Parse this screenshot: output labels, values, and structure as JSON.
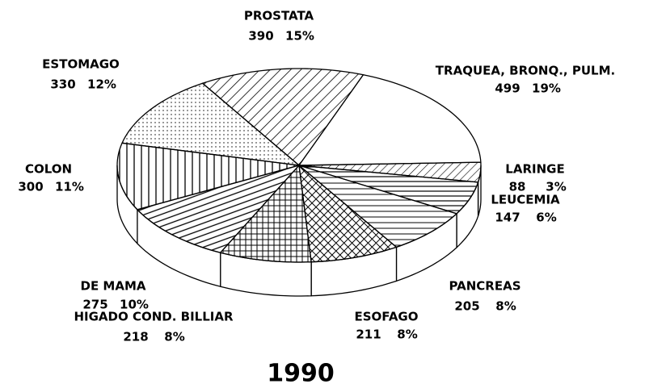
{
  "chart_data": {
    "type": "pie",
    "title": "1990",
    "categories": [
      "PROSTATA",
      "TRAQUEA, BRONQ., PULM.",
      "LARINGE",
      "LEUCEMIA",
      "PANCREAS",
      "ESOFAGO",
      "HIGADO COND. BILLIAR",
      "DE MAMA",
      "COLON",
      "ESTOMAGO"
    ],
    "values": [
      390,
      499,
      88,
      147,
      205,
      211,
      218,
      275,
      300,
      330
    ],
    "percent_labels": [
      "15%",
      "19%",
      "3%",
      "6%",
      "8%",
      "8%",
      "8%",
      "10%",
      "11%",
      "12%"
    ]
  }
}
